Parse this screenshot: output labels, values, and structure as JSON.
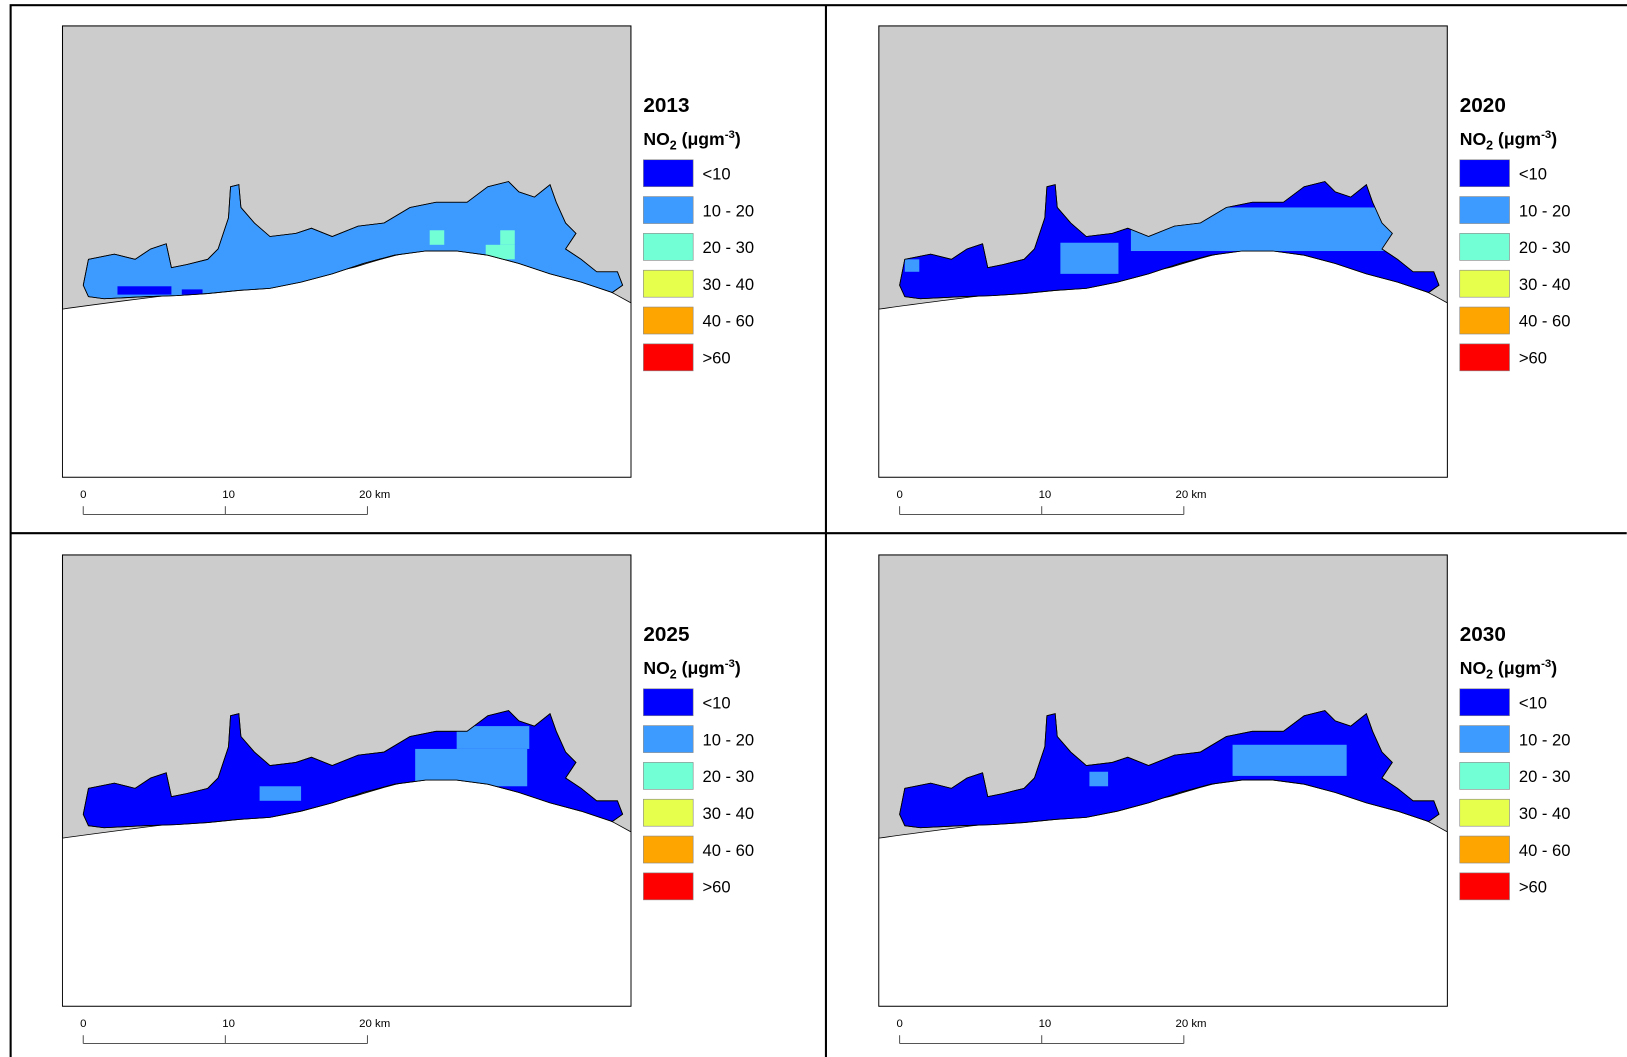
{
  "panels": [
    {
      "year": "2013"
    },
    {
      "year": "2020"
    },
    {
      "year": "2025"
    },
    {
      "year": "2030"
    }
  ],
  "legend": {
    "title": {
      "main": "NO",
      "sub": "2",
      "unit": " (μgm",
      "sup": "-3",
      "end": ")"
    },
    "classes": [
      {
        "label": "<10",
        "color": "#0000ff"
      },
      {
        "label": "10 - 20",
        "color": "#3d9bff"
      },
      {
        "label": "20 - 30",
        "color": "#73ffd6"
      },
      {
        "label": "30 - 40",
        "color": "#e6ff4d"
      },
      {
        "label": "40 - 60",
        "color": "#ffa500"
      },
      {
        "label": ">60",
        "color": "#ff0000"
      }
    ]
  },
  "scale_bar": {
    "labels": [
      "0",
      "10",
      "20 km"
    ]
  }
}
